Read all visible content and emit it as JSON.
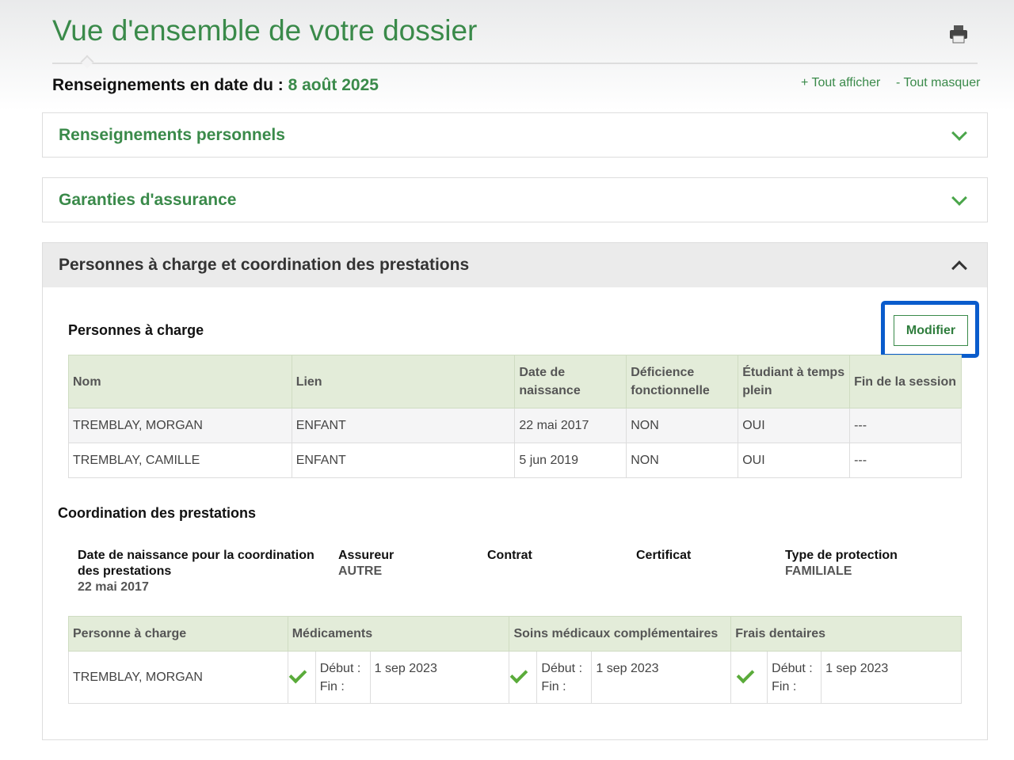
{
  "header": {
    "title": "Vue d'ensemble de votre dossier",
    "as_of_label": "Renseignements en date du :",
    "as_of_date": "8 août 2025",
    "show_all": "+ Tout afficher",
    "hide_all": "- Tout masquer",
    "print_icon": "printer-icon"
  },
  "panels": [
    {
      "title": "Renseignements personnels",
      "state": "collapsed"
    },
    {
      "title": "Garanties d'assurance",
      "state": "collapsed"
    },
    {
      "title": "Personnes à charge et coordination des prestations",
      "state": "expanded"
    }
  ],
  "dependents": {
    "title": "Personnes à charge",
    "modify_label": "Modifier",
    "columns": [
      "Nom",
      "Lien",
      "Date de naissance",
      "Déficience fonctionnelle",
      "Étudiant à temps plein",
      "Fin de la session"
    ],
    "rows": [
      [
        "TREMBLAY, MORGAN",
        "ENFANT",
        "22 mai 2017",
        "NON",
        "OUI",
        "---"
      ],
      [
        "TREMBLAY, CAMILLE",
        "ENFANT",
        "5 jun 2019",
        "NON",
        "OUI",
        "---"
      ]
    ]
  },
  "coordination": {
    "title": "Coordination des prestations",
    "fields": [
      {
        "label": "Date de naissance pour la coordination des prestations",
        "value": "22 mai 2017"
      },
      {
        "label": "Assureur",
        "value": "AUTRE"
      },
      {
        "label": "Contrat",
        "value": ""
      },
      {
        "label": "Certificat",
        "value": ""
      },
      {
        "label": "Type de protection",
        "value": "FAMILIALE"
      }
    ],
    "columns": [
      "Personne à charge",
      "Médicaments",
      "Soins médicaux complémentaires",
      "Frais dentaires"
    ],
    "start_label": "Début :",
    "end_label": "Fin :",
    "rows": [
      {
        "name": "TREMBLAY, MORGAN",
        "coverage": [
          {
            "covered": true,
            "start": "1 sep 2023",
            "end": ""
          },
          {
            "covered": true,
            "start": "1 sep 2023",
            "end": ""
          },
          {
            "covered": true,
            "start": "1 sep 2023",
            "end": ""
          }
        ]
      }
    ]
  },
  "colors": {
    "brand_green": "#3a8a4a",
    "highlight_blue": "#0a5ccc",
    "table_header": "#e3ecd9"
  }
}
